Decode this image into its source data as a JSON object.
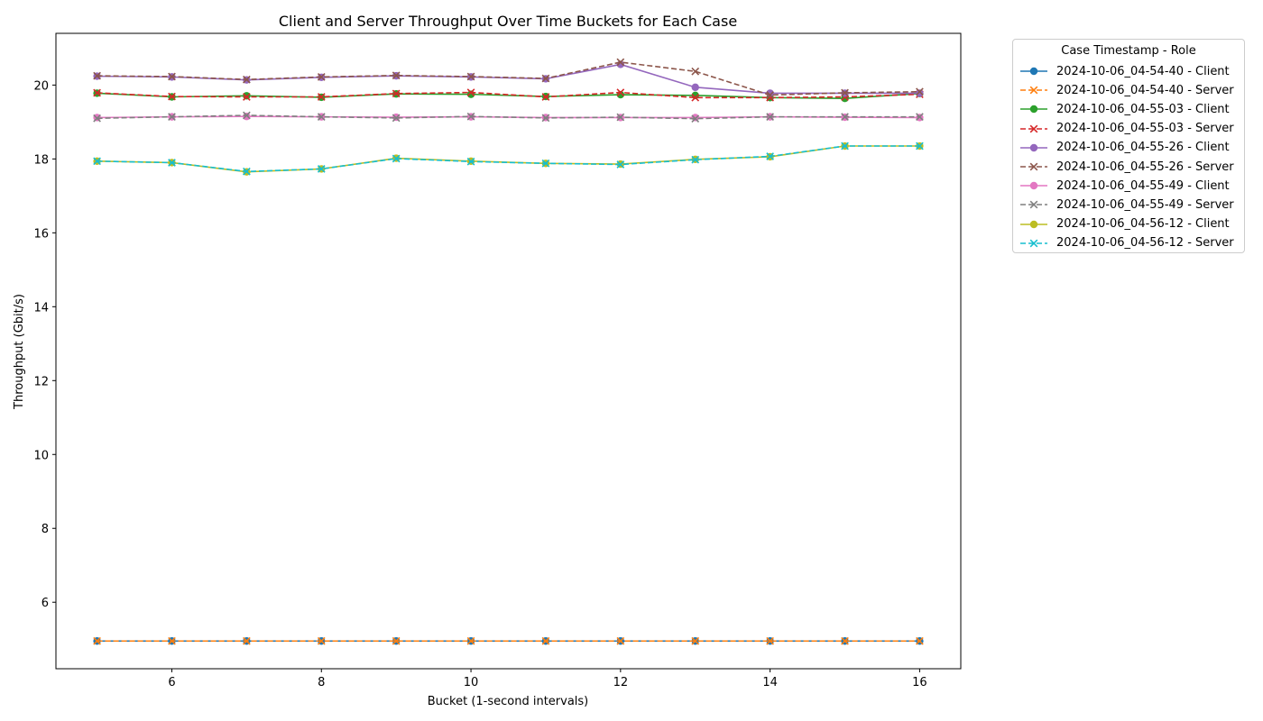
{
  "chart_data": {
    "type": "line",
    "title": "Client and Server Throughput Over Time Buckets for Each Case",
    "xlabel": "Bucket (1-second intervals)",
    "ylabel": "Throughput (Gbit/s)",
    "xlim": [
      4.45,
      16.55
    ],
    "ylim": [
      4.2,
      21.4
    ],
    "xticks": [
      6,
      8,
      10,
      12,
      14,
      16
    ],
    "yticks": [
      6,
      8,
      10,
      12,
      14,
      16,
      18,
      20
    ],
    "grid": false,
    "legend_title": "Case Timestamp - Role",
    "legend_position": "outside-top-right",
    "x": [
      5,
      6,
      7,
      8,
      9,
      10,
      11,
      12,
      13,
      14,
      15,
      16
    ],
    "series": [
      {
        "name": "2024-10-06_04-54-40 - Client",
        "color": "#1f77b4",
        "dash": "solid",
        "marker": "circle",
        "values": [
          4.95,
          4.95,
          4.95,
          4.95,
          4.95,
          4.95,
          4.95,
          4.95,
          4.95,
          4.95,
          4.95,
          4.95
        ]
      },
      {
        "name": "2024-10-06_04-54-40 - Server",
        "color": "#ff7f0e",
        "dash": "dashed",
        "marker": "x",
        "values": [
          4.95,
          4.95,
          4.95,
          4.95,
          4.95,
          4.95,
          4.95,
          4.95,
          4.95,
          4.95,
          4.95,
          4.95
        ]
      },
      {
        "name": "2024-10-06_04-55-03 - Client",
        "color": "#2ca02c",
        "dash": "solid",
        "marker": "circle",
        "values": [
          19.78,
          19.68,
          19.71,
          19.67,
          19.76,
          19.75,
          19.69,
          19.74,
          19.72,
          19.66,
          19.64,
          19.77
        ]
      },
      {
        "name": "2024-10-06_04-55-03 - Server",
        "color": "#d62728",
        "dash": "dashed",
        "marker": "x",
        "values": [
          19.79,
          19.69,
          19.68,
          19.68,
          19.77,
          19.8,
          19.68,
          19.8,
          19.66,
          19.66,
          19.68,
          19.75
        ]
      },
      {
        "name": "2024-10-06_04-55-26 - Client",
        "color": "#9467bd",
        "dash": "solid",
        "marker": "circle",
        "values": [
          20.24,
          20.22,
          20.14,
          20.21,
          20.25,
          20.22,
          20.17,
          20.56,
          19.94,
          19.78,
          19.78,
          19.78
        ]
      },
      {
        "name": "2024-10-06_04-55-26 - Server",
        "color": "#8c564b",
        "dash": "dashed",
        "marker": "x",
        "values": [
          20.25,
          20.23,
          20.15,
          20.22,
          20.26,
          20.23,
          20.18,
          20.62,
          20.37,
          19.73,
          19.79,
          19.82
        ]
      },
      {
        "name": "2024-10-06_04-55-49 - Client",
        "color": "#e377c2",
        "dash": "solid",
        "marker": "circle",
        "values": [
          19.12,
          19.14,
          19.15,
          19.14,
          19.13,
          19.14,
          19.12,
          19.12,
          19.12,
          19.14,
          19.13,
          19.12
        ]
      },
      {
        "name": "2024-10-06_04-55-49 - Server",
        "color": "#7f7f7f",
        "dash": "dashed",
        "marker": "x",
        "values": [
          19.1,
          19.14,
          19.18,
          19.14,
          19.11,
          19.15,
          19.11,
          19.13,
          19.09,
          19.14,
          19.14,
          19.14
        ]
      },
      {
        "name": "2024-10-06_04-56-12 - Client",
        "color": "#bcbd22",
        "dash": "solid",
        "marker": "circle",
        "values": [
          17.94,
          17.9,
          17.65,
          17.73,
          18.02,
          17.94,
          17.88,
          17.86,
          17.99,
          18.06,
          18.35,
          18.35
        ]
      },
      {
        "name": "2024-10-06_04-56-12 - Server",
        "color": "#17becf",
        "dash": "dashed",
        "marker": "x",
        "values": [
          17.94,
          17.9,
          17.66,
          17.73,
          18.01,
          17.93,
          17.88,
          17.85,
          17.98,
          18.07,
          18.35,
          18.35
        ]
      }
    ]
  }
}
